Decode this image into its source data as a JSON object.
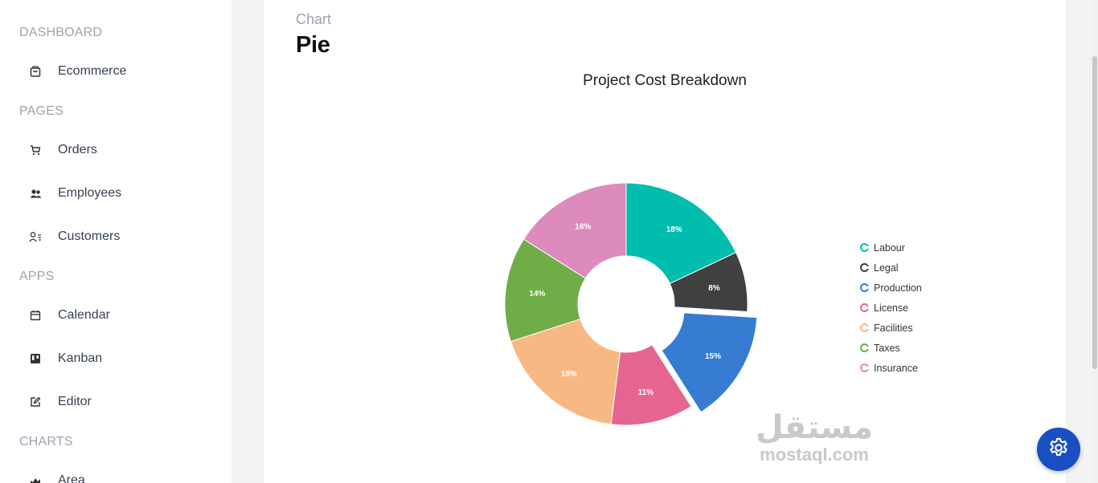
{
  "sidebar": {
    "sections": [
      {
        "title": "DASHBOARD",
        "items": [
          {
            "label": "Ecommerce",
            "icon": "shopping-bag-icon"
          }
        ]
      },
      {
        "title": "PAGES",
        "items": [
          {
            "label": "Orders",
            "icon": "cart-icon"
          },
          {
            "label": "Employees",
            "icon": "people-icon"
          },
          {
            "label": "Customers",
            "icon": "customer-list-icon"
          }
        ]
      },
      {
        "title": "APPS",
        "items": [
          {
            "label": "Calendar",
            "icon": "calendar-icon"
          },
          {
            "label": "Kanban",
            "icon": "kanban-icon"
          },
          {
            "label": "Editor",
            "icon": "edit-icon"
          }
        ]
      },
      {
        "title": "CHARTS",
        "items": [
          {
            "label": "Area",
            "icon": "area-chart-icon"
          }
        ]
      }
    ]
  },
  "header": {
    "category": "Chart",
    "title": "Pie"
  },
  "chart_data": {
    "type": "pie",
    "title": "Project Cost Breakdown",
    "donut": true,
    "exploded": [
      "Production"
    ],
    "legend_position": "right",
    "categories": [
      "Labour",
      "Legal",
      "Production",
      "License",
      "Facilities",
      "Taxes",
      "Insurance"
    ],
    "values": [
      18,
      8,
      15,
      11,
      18,
      14,
      16
    ],
    "labels": [
      "18%",
      "8%",
      "15%",
      "11%",
      "18%",
      "14%",
      "16%"
    ],
    "colors": [
      "#00bdae",
      "#404041",
      "#357cd2",
      "#e56590",
      "#f8b883",
      "#70ad47",
      "#dd8abd"
    ]
  },
  "watermark": {
    "arabic": "مستقل",
    "latin": "mostaql.com"
  },
  "settings": {
    "icon": "gear-icon",
    "color": "#1a4fc3"
  }
}
